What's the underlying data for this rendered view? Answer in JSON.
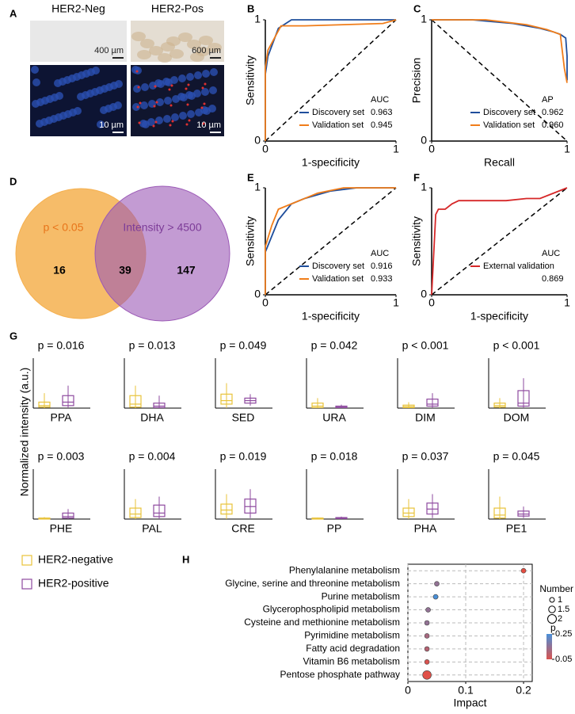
{
  "chart_data": [
    {
      "type": "image",
      "panel": "A",
      "columns": [
        "HER2-Neg",
        "HER2-Pos"
      ],
      "scale_bars": [
        [
          "400 µm",
          "600 µm"
        ],
        [
          "10 µm",
          "10 µm"
        ]
      ]
    },
    {
      "type": "line",
      "panel": "B",
      "xlabel": "1-specificity",
      "ylabel": "Sensitivity",
      "xlim": [
        0,
        1
      ],
      "ylim": [
        0,
        1
      ],
      "xticks": [
        0,
        1
      ],
      "yticks": [
        0,
        1
      ],
      "diagonal": "up",
      "legend_title": "AUC",
      "series": [
        {
          "name": "Discovery set",
          "color": "#1f4e9c",
          "score": "0.963",
          "x": [
            0,
            0,
            0.02,
            0.1,
            0.2,
            0.4,
            0.6,
            0.8,
            1
          ],
          "values": [
            0,
            0.55,
            0.7,
            0.93,
            1,
            1,
            1,
            1,
            1
          ]
        },
        {
          "name": "Validation set",
          "color": "#f07d1a",
          "score": "0.945",
          "x": [
            0,
            0,
            0.02,
            0.12,
            0.2,
            0.3,
            0.9,
            1
          ],
          "values": [
            0,
            0.6,
            0.75,
            0.95,
            0.95,
            0.95,
            0.97,
            1
          ]
        }
      ]
    },
    {
      "type": "line",
      "panel": "C",
      "xlabel": "Recall",
      "ylabel": "Precision",
      "xlim": [
        0,
        1
      ],
      "ylim": [
        0,
        1
      ],
      "xticks": [
        0,
        1
      ],
      "yticks": [
        0,
        1
      ],
      "diagonal": "down",
      "legend_title": "AP",
      "series": [
        {
          "name": "Discovery set",
          "color": "#1f4e9c",
          "score": "0.962",
          "x": [
            0,
            0.3,
            0.6,
            0.8,
            0.9,
            0.95,
            0.99,
            1,
            1
          ],
          "values": [
            1,
            1,
            0.97,
            0.93,
            0.9,
            0.88,
            0.85,
            0.7,
            0.5
          ]
        },
        {
          "name": "Validation set",
          "color": "#f07d1a",
          "score": "0.960",
          "x": [
            0,
            0.4,
            0.7,
            0.85,
            0.95,
            0.98,
            1
          ],
          "values": [
            1,
            1,
            0.96,
            0.92,
            0.88,
            0.6,
            0.48
          ]
        }
      ]
    },
    {
      "type": "venn",
      "panel": "D",
      "sets": [
        {
          "name": "p < 0.05",
          "color": "#f5b04f"
        },
        {
          "name": "Intensity > 4500",
          "color": "#9b59b6"
        }
      ],
      "counts": [
        16,
        39,
        147
      ]
    },
    {
      "type": "line",
      "panel": "E",
      "xlabel": "1-specificity",
      "ylabel": "Sensitivity",
      "xlim": [
        0,
        1
      ],
      "ylim": [
        0,
        1
      ],
      "xticks": [
        0,
        1
      ],
      "yticks": [
        0,
        1
      ],
      "diagonal": "up",
      "legend_title": "AUC",
      "series": [
        {
          "name": "Discovery set",
          "color": "#1f4e9c",
          "score": "0.916",
          "x": [
            0,
            0,
            0.05,
            0.1,
            0.2,
            0.3,
            0.5,
            0.7,
            1
          ],
          "values": [
            0,
            0.4,
            0.55,
            0.7,
            0.85,
            0.9,
            0.97,
            1,
            1
          ]
        },
        {
          "name": "Validation set",
          "color": "#f07d1a",
          "score": "0.933",
          "x": [
            0,
            0,
            0.05,
            0.1,
            0.2,
            0.4,
            0.6,
            1
          ],
          "values": [
            0,
            0.45,
            0.65,
            0.8,
            0.85,
            0.95,
            1,
            1
          ]
        }
      ]
    },
    {
      "type": "line",
      "panel": "F",
      "xlabel": "1-specificity",
      "ylabel": "Sensitivity",
      "xlim": [
        0,
        1
      ],
      "ylim": [
        0,
        1
      ],
      "xticks": [
        0,
        1
      ],
      "yticks": [
        0,
        1
      ],
      "diagonal": "up",
      "legend_title": "AUC",
      "series": [
        {
          "name": "External validation",
          "color": "#d62728",
          "score": "0.869",
          "x": [
            0,
            0.03,
            0.05,
            0.1,
            0.15,
            0.2,
            0.55,
            0.7,
            0.8,
            0.9,
            1
          ],
          "values": [
            0,
            0.75,
            0.8,
            0.8,
            0.85,
            0.88,
            0.88,
            0.9,
            0.9,
            0.95,
            1
          ]
        }
      ]
    },
    {
      "type": "box",
      "panel": "G",
      "ylabel": "Normalized intensity (a.u.)",
      "ylim": [
        0,
        1
      ],
      "series": [
        {
          "name": "HER2-negative",
          "color": "#e8c33a"
        },
        {
          "name": "HER2-positive",
          "color": "#8e4a9f"
        }
      ],
      "panels": [
        {
          "name": "PPA",
          "p": "p = 0.016",
          "values": [
            [
              0,
              0.02,
              0.05,
              0.12,
              0.3
            ],
            [
              0,
              0.05,
              0.12,
              0.25,
              0.45
            ]
          ]
        },
        {
          "name": "DHA",
          "p": "p = 0.013",
          "values": [
            [
              0,
              0.02,
              0.08,
              0.25,
              0.45
            ],
            [
              0,
              0.01,
              0.04,
              0.1,
              0.25
            ]
          ]
        },
        {
          "name": "SED",
          "p": "p = 0.049",
          "values": [
            [
              0,
              0.08,
              0.15,
              0.28,
              0.5
            ],
            [
              0.05,
              0.1,
              0.15,
              0.2,
              0.28
            ]
          ]
        },
        {
          "name": "URA",
          "p": "p = 0.042",
          "values": [
            [
              0,
              0.01,
              0.04,
              0.1,
              0.2
            ],
            [
              0,
              0.01,
              0.02,
              0.04,
              0.07
            ]
          ]
        },
        {
          "name": "DIM",
          "p": "p < 0.001",
          "values": [
            [
              0,
              0.01,
              0.03,
              0.06,
              0.12
            ],
            [
              0,
              0.04,
              0.08,
              0.18,
              0.3
            ]
          ]
        },
        {
          "name": "DOM",
          "p": "p < 0.001",
          "values": [
            [
              0,
              0.02,
              0.05,
              0.1,
              0.2
            ],
            [
              0,
              0.04,
              0.1,
              0.35,
              0.6
            ]
          ]
        },
        {
          "name": "PHE",
          "p": "p = 0.003",
          "values": [
            [
              0,
              0,
              0.01,
              0.02,
              0.04
            ],
            [
              0,
              0.02,
              0.05,
              0.12,
              0.2
            ]
          ]
        },
        {
          "name": "PAL",
          "p": "p = 0.004",
          "values": [
            [
              0,
              0.03,
              0.1,
              0.22,
              0.4
            ],
            [
              0,
              0.05,
              0.12,
              0.28,
              0.45
            ]
          ]
        },
        {
          "name": "CRE",
          "p": "p = 0.019",
          "values": [
            [
              0,
              0.1,
              0.18,
              0.3,
              0.5
            ],
            [
              0.02,
              0.12,
              0.25,
              0.4,
              0.6
            ]
          ]
        },
        {
          "name": "PP",
          "p": "p = 0.018",
          "values": [
            [
              0,
              0,
              0.01,
              0.02,
              0.03
            ],
            [
              0,
              0.01,
              0.02,
              0.03,
              0.05
            ]
          ]
        },
        {
          "name": "PHA",
          "p": "p = 0.037",
          "values": [
            [
              0,
              0.05,
              0.12,
              0.22,
              0.4
            ],
            [
              0.02,
              0.1,
              0.2,
              0.32,
              0.5
            ]
          ]
        },
        {
          "name": "PE1",
          "p": "p = 0.045",
          "values": [
            [
              0,
              0.02,
              0.08,
              0.22,
              0.45
            ],
            [
              0.02,
              0.06,
              0.1,
              0.16,
              0.25
            ]
          ]
        }
      ]
    },
    {
      "type": "dot",
      "panel": "H",
      "xlabel": "Impact",
      "xlim": [
        0,
        0.215
      ],
      "xticks": [
        0,
        0.1,
        0.2
      ],
      "grid": true,
      "categories": [
        "Phenylalanine metabolism",
        "Glycine, serine and threonine metabolism",
        "Purine metabolism",
        "Glycerophospholipid metabolism",
        "Cysteine and methionine metabolism",
        "Pyrimidine metabolism",
        "Fatty acid degradation",
        "Vitamin B6 metabolism",
        "Pentose phosphate pathway"
      ],
      "impact": [
        0.2,
        0.05,
        0.048,
        0.035,
        0.033,
        0.033,
        0.033,
        0.033,
        0.033
      ],
      "number": [
        1,
        1,
        1,
        1,
        1,
        1,
        1,
        1,
        2
      ],
      "p": [
        0.03,
        0.15,
        0.25,
        0.15,
        0.15,
        0.12,
        0.1,
        0.05,
        0.04
      ],
      "size_title": "Number",
      "size_ticks": [
        1,
        1.5,
        2
      ],
      "color_title": "p",
      "colorlim": [
        0.05,
        0.25
      ],
      "color_ticks": [
        0.25,
        0.05
      ],
      "colors": [
        "#d9534f",
        "#4a90d9"
      ]
    }
  ]
}
